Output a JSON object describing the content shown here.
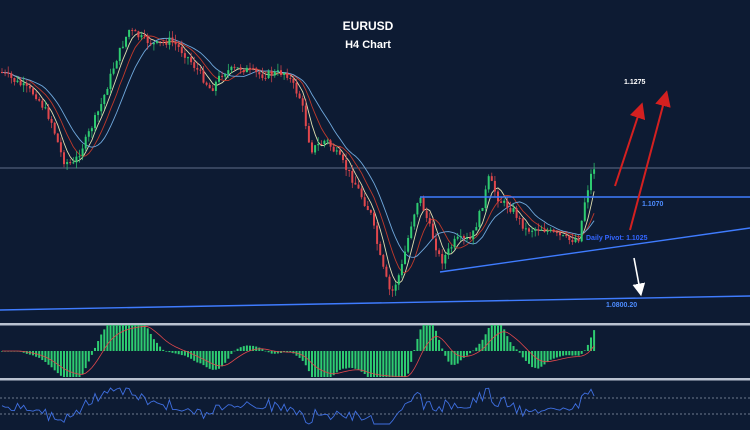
{
  "chart_data": {
    "type": "candlestick",
    "title": "EURUSD",
    "subtitle": "H4 Chart",
    "levels": [
      {
        "label": "1.1275",
        "color": "#ffffff"
      },
      {
        "label": "1.1070",
        "color": "#4d8cff"
      },
      {
        "label": "Daily Pivot: 1.1025",
        "color": "#3366ff"
      },
      {
        "label": "1.0800.20",
        "color": "#4d8cff"
      }
    ],
    "annotations": {
      "bullish_arrows": 2,
      "bearish_arrows": 1,
      "arrow_colors": {
        "bull": "#d42020",
        "bear": "#ffffff"
      }
    },
    "colors": {
      "background": "#0d1b33",
      "bull_candle": "#2ecc71",
      "bear_candle": "#e0474c",
      "ma_fast": "#e0dfb0",
      "ma_mid": "#c0392b",
      "ma_slow": "#6fa8dc",
      "trendline": "#3f7cff",
      "macd_hist": "#2ecc71",
      "rsi_line": "#3f6fe0"
    },
    "indicators": [
      "MACD histogram",
      "RSI"
    ],
    "grid": false
  }
}
